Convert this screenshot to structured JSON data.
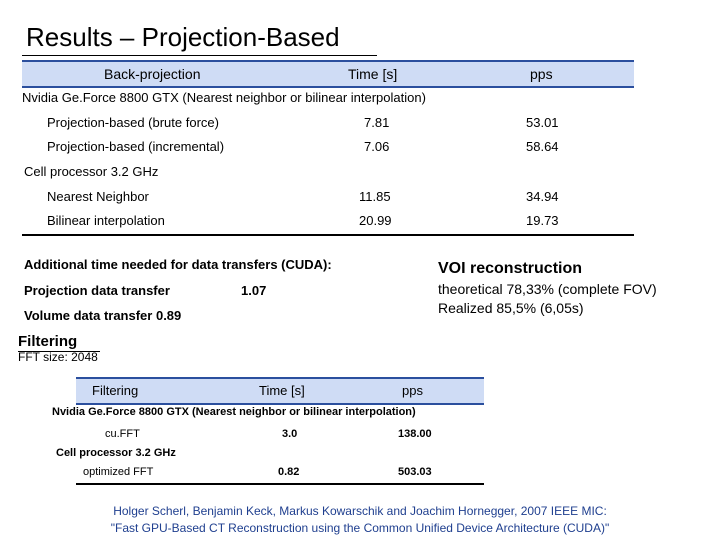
{
  "title": "Results – Projection-Based",
  "table1": {
    "headers": [
      "Back-projection",
      "Time [s]",
      "pps"
    ],
    "section1": "Nvidia Ge.Force 8800 GTX (Nearest neighbor or bilinear interpolation)",
    "rows1": [
      {
        "name": "Projection-based (brute force)",
        "time": "7.81",
        "pps": "53.01"
      },
      {
        "name": "Projection-based (incremental)",
        "time": "7.06",
        "pps": "58.64"
      }
    ],
    "section2": "Cell processor 3.2 GHz",
    "rows2": [
      {
        "name": "Nearest Neighbor",
        "time": "11.85",
        "pps": "34.94"
      },
      {
        "name": "Bilinear interpolation",
        "time": "20.99",
        "pps": "19.73"
      }
    ]
  },
  "transfers": {
    "heading": "Additional time needed for data transfers (CUDA):",
    "projection_label": "Projection data transfer",
    "projection_value": "1.07",
    "volume_line": "Volume data transfer 0.89"
  },
  "voi": {
    "title": "VOI reconstruction",
    "line1": "theoretical 78,33% (complete FOV)",
    "line2": "Realized 85,5% (6,05s)"
  },
  "filtering": {
    "title": "Filtering",
    "fft_size": "FFT size: 2048",
    "headers": [
      "Filtering",
      "Time [s]",
      "pps"
    ],
    "section1": "Nvidia Ge.Force 8800 GTX (Nearest neighbor or bilinear interpolation)",
    "row1": {
      "name": "cu.FFT",
      "time": "3.0",
      "pps": "138.00"
    },
    "section2": "Cell processor 3.2 GHz",
    "row2": {
      "name": "optimized FFT",
      "time": "0.82",
      "pps": "503.03"
    }
  },
  "citation": {
    "line1": "Holger Scherl, Benjamin Keck, Markus Kowarschik and Joachim Hornegger, 2007 IEEE MIC:",
    "line2": "\"Fast GPU-Based CT Reconstruction using the Common Unified Device Architecture (CUDA)\""
  }
}
